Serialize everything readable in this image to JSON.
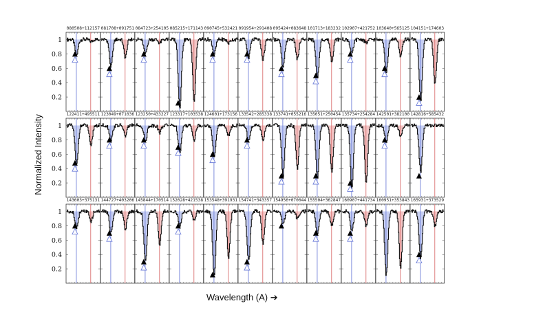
{
  "figure": {
    "ylabel": "Normalized Intensity",
    "xlabel": "Wavelength (A) ➔"
  },
  "colors": {
    "spectrum": "#111111",
    "blue_line": "#6f7fd9",
    "red_line": "#d97070",
    "fill_blue": "#b9c3ef",
    "fill_red": "#f0b8b8",
    "marker_filled": "#000000",
    "marker_open": "#6f7fd9"
  },
  "chart_data": {
    "type": "line",
    "panel_grid": {
      "rows": 3,
      "cols": 11
    },
    "ylim": [
      0,
      1.1
    ],
    "yticks": [
      0.2,
      0.4,
      0.6,
      0.8,
      1
    ],
    "ytick_labels": [
      "0.2",
      "0.4",
      "0.6",
      "0.8",
      "1"
    ],
    "continuum": 1.0,
    "rows": [
      {
        "panels": [
          {
            "name": "080508+112157",
            "blue_depth": 0.78,
            "red_depth": 0.97,
            "filled_marker": 0.8,
            "open_marker": 0.72
          },
          {
            "name": "081708+091751",
            "blue_depth": 0.62,
            "red_depth": 0.75,
            "filled_marker": 0.6,
            "open_marker": 0.52
          },
          {
            "name": "084723+254105",
            "blue_depth": 0.8,
            "red_depth": 0.95,
            "filled_marker": 0.8,
            "open_marker": 0.72
          },
          {
            "name": "085215+171143",
            "blue_depth": 0.05,
            "red_depth": 0.15,
            "filled_marker": 0.12,
            "open_marker": null
          },
          {
            "name": "090745+532421",
            "blue_depth": 0.8,
            "red_depth": 0.95,
            "filled_marker": 0.8,
            "open_marker": 0.72
          },
          {
            "name": "091954+291408",
            "blue_depth": 0.75,
            "red_depth": 0.72,
            "filled_marker": 0.8,
            "open_marker": 0.72
          },
          {
            "name": "095424+083648",
            "blue_depth": 0.6,
            "red_depth": 0.72,
            "filled_marker": 0.6,
            "open_marker": 0.52
          },
          {
            "name": "101713+183232",
            "blue_depth": 0.45,
            "red_depth": 0.7,
            "filled_marker": 0.5,
            "open_marker": 0.42
          },
          {
            "name": "102907+421752",
            "blue_depth": 0.8,
            "red_depth": 0.95,
            "filled_marker": 0.8,
            "open_marker": 0.72
          },
          {
            "name": "103640+565125",
            "blue_depth": 0.55,
            "red_depth": 0.75,
            "filled_marker": 0.6,
            "open_marker": 0.52
          },
          {
            "name": "104151+174603",
            "blue_depth": 0.15,
            "red_depth": 0.38,
            "filled_marker": 0.2,
            "open_marker": 0.12
          }
        ]
      },
      {
        "panels": [
          {
            "name": "122411+495511",
            "blue_depth": 0.45,
            "red_depth": 0.7,
            "filled_marker": 0.48,
            "open_marker": 0.4
          },
          {
            "name": "123049+071036",
            "blue_depth": 0.8,
            "red_depth": 0.85,
            "filled_marker": 0.8,
            "open_marker": 0.72
          },
          {
            "name": "123250+433227",
            "blue_depth": 0.78,
            "red_depth": 0.9,
            "filled_marker": 0.8,
            "open_marker": 0.72
          },
          {
            "name": "123317+103538",
            "blue_depth": 0.62,
            "red_depth": 0.8,
            "filled_marker": 0.7,
            "open_marker": 0.62
          },
          {
            "name": "124601+173156",
            "blue_depth": 0.55,
            "red_depth": 0.85,
            "filled_marker": 0.6,
            "open_marker": 0.52
          },
          {
            "name": "133542+285338",
            "blue_depth": 0.78,
            "red_depth": 0.8,
            "filled_marker": 0.8,
            "open_marker": 0.72
          },
          {
            "name": "133741+055216",
            "blue_depth": 0.3,
            "red_depth": 0.4,
            "filled_marker": 0.3,
            "open_marker": 0.22
          },
          {
            "name": "135051+250454",
            "blue_depth": 0.28,
            "red_depth": 0.35,
            "filled_marker": 0.3,
            "open_marker": 0.22
          },
          {
            "name": "135734+254284",
            "blue_depth": 0.12,
            "red_depth": 0.2,
            "filled_marker": 0.2,
            "open_marker": 0.12
          },
          {
            "name": "142501+382100",
            "blue_depth": 0.78,
            "red_depth": 0.85,
            "filled_marker": 0.8,
            "open_marker": 0.72
          },
          {
            "name": "142816+585432",
            "blue_depth": 0.35,
            "red_depth": null,
            "filled_marker": 0.3,
            "open_marker": null
          }
        ]
      },
      {
        "panels": [
          {
            "name": "143603+375131",
            "blue_depth": 0.78,
            "red_depth": 0.85,
            "filled_marker": 0.8,
            "open_marker": 0.72
          },
          {
            "name": "144727+403206",
            "blue_depth": 0.7,
            "red_depth": 0.75,
            "filled_marker": 0.7,
            "open_marker": 0.62
          },
          {
            "name": "145844+170514",
            "blue_depth": 0.3,
            "red_depth": 0.55,
            "filled_marker": 0.3,
            "open_marker": 0.22
          },
          {
            "name": "152028+421538",
            "blue_depth": 0.8,
            "red_depth": 0.88,
            "filled_marker": 0.8,
            "open_marker": 0.72
          },
          {
            "name": "153548+391931",
            "blue_depth": 0.1,
            "red_depth": 0.35,
            "filled_marker": 0.12,
            "open_marker": null
          },
          {
            "name": "154741+343357",
            "blue_depth": 0.3,
            "red_depth": 0.55,
            "filled_marker": 0.3,
            "open_marker": 0.22
          },
          {
            "name": "154956+070044",
            "blue_depth": 0.82,
            "red_depth": 0.9,
            "filled_marker": 0.8,
            "open_marker": null
          },
          {
            "name": "155504+362847",
            "blue_depth": 0.7,
            "red_depth": 0.8,
            "filled_marker": 0.7,
            "open_marker": 0.62
          },
          {
            "name": "160907+441734",
            "blue_depth": 0.72,
            "red_depth": 0.8,
            "filled_marker": 0.7,
            "open_marker": 0.62
          },
          {
            "name": "160951+353843",
            "blue_depth": 0.12,
            "red_depth": 0.2,
            "filled_marker": null,
            "open_marker": null
          },
          {
            "name": "165931+373529",
            "blue_depth": 0.35,
            "red_depth": 0.8,
            "filled_marker": 0.4,
            "open_marker": 0.32
          }
        ]
      }
    ]
  }
}
